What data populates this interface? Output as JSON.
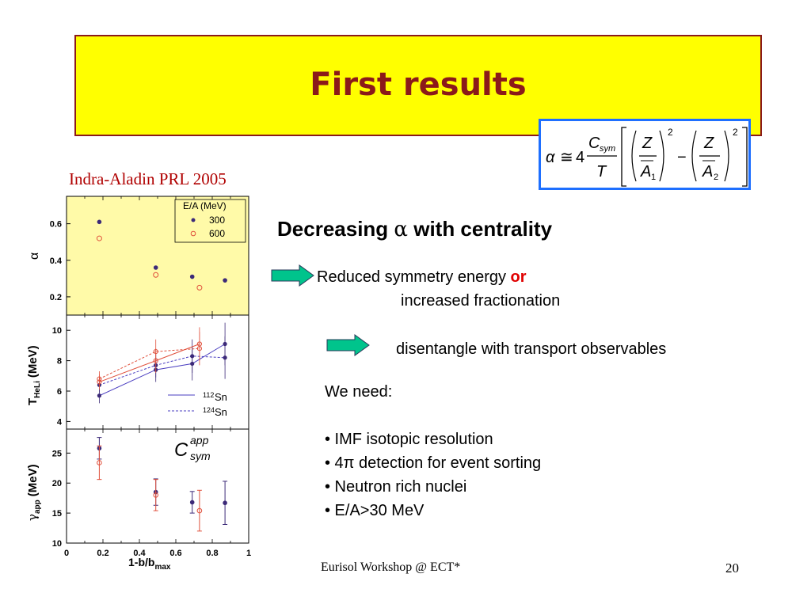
{
  "slide": {
    "title": "First results",
    "citation": "Indra-Aladin PRL 2005",
    "headline_pre": "Decreasing",
    "headline_alpha": "α",
    "headline_post": "with centrality",
    "arrow1_line1_pre": "Reduced symmetry energy",
    "arrow1_or": "or",
    "arrow1_line2": "increased fractionation",
    "arrow2_text": "disentangle with transport observables",
    "we_need": "We need:",
    "bullets": [
      "• IMF isotopic resolution",
      "• 4π detection for event sorting",
      "• Neutron rich nuclei",
      "• E/A>30 MeV"
    ],
    "footer_left": "Eurisol Workshop @ ECT*",
    "footer_right": "20",
    "colors": {
      "title": "#8b1a1a",
      "box": "#ffff00",
      "arrow": "#00c48c",
      "or": "#e00000",
      "formula_border": "#1e6fff"
    }
  },
  "formula": {
    "alpha": "α",
    "approx": "≅",
    "four": "4",
    "C": "C",
    "sym": "sym",
    "T": "T",
    "Z": "Z",
    "A1": "A",
    "sub1": "1",
    "A2": "A",
    "sub2": "2",
    "sq": "2",
    "minus": "−"
  },
  "chart_data": [
    {
      "type": "scatter",
      "panel": "alpha",
      "ylabel": "α",
      "xlim": [
        0,
        1
      ],
      "ylim": [
        0.1,
        0.75
      ],
      "yticks": [
        "0.2",
        "0.4",
        "0.6"
      ],
      "legend_title": "E/A (MeV)",
      "series": [
        {
          "name": "300",
          "style": "filled",
          "x": [
            0.18,
            0.49,
            0.69,
            0.87
          ],
          "y": [
            0.61,
            0.36,
            0.31,
            0.29
          ]
        },
        {
          "name": "600",
          "style": "open",
          "x": [
            0.18,
            0.49,
            0.73
          ],
          "y": [
            0.52,
            0.32,
            0.25
          ]
        }
      ]
    },
    {
      "type": "line",
      "panel": "T",
      "ylabel": "T",
      "ylabel_sub": "HeLi",
      "ylabel_unit": "(MeV)",
      "xlim": [
        0,
        1
      ],
      "ylim": [
        3.5,
        11
      ],
      "yticks": [
        "4",
        "6",
        "8",
        "10"
      ],
      "legend": [
        {
          "sup": "112",
          "label": "Sn"
        },
        {
          "sup": "124",
          "label": "Sn"
        }
      ],
      "series": [
        {
          "name": "300 112Sn",
          "x": [
            0.18,
            0.49,
            0.69,
            0.87
          ],
          "y": [
            5.7,
            7.4,
            7.8,
            9.1
          ]
        },
        {
          "name": "300 124Sn",
          "x": [
            0.18,
            0.49,
            0.69,
            0.87
          ],
          "y": [
            6.4,
            7.7,
            8.3,
            8.2
          ]
        },
        {
          "name": "600 112Sn",
          "x": [
            0.18,
            0.49,
            0.73
          ],
          "y": [
            6.6,
            8.0,
            9.1
          ]
        },
        {
          "name": "600 124Sn",
          "x": [
            0.18,
            0.49,
            0.73
          ],
          "y": [
            6.8,
            8.6,
            8.8
          ]
        }
      ]
    },
    {
      "type": "scatter",
      "panel": "gamma",
      "ylabel": "γ",
      "ylabel_sub": "app",
      "ylabel_unit": "(MeV)",
      "xlabel": "1-b/b",
      "xlabel_sub": "max",
      "xlim": [
        0,
        1
      ],
      "ylim": [
        10,
        29
      ],
      "yticks": [
        "10",
        "15",
        "20",
        "25"
      ],
      "xticks": [
        "0",
        "0.2",
        "0.4",
        "0.6",
        "0.8",
        "1"
      ],
      "annotation": {
        "C": "C",
        "sup": "app",
        "sub": "sym"
      },
      "series": [
        {
          "name": "300",
          "style": "filled",
          "x": [
            0.18,
            0.49,
            0.69,
            0.87
          ],
          "y": [
            25.8,
            18.5,
            16.8,
            16.7
          ]
        },
        {
          "name": "600",
          "style": "open",
          "x": [
            0.18,
            0.49,
            0.73
          ],
          "y": [
            23.4,
            18.0,
            15.4
          ]
        }
      ]
    }
  ]
}
